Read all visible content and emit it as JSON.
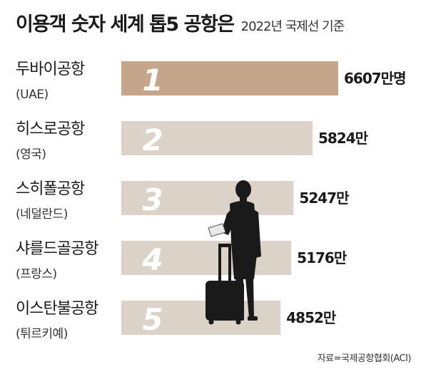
{
  "header": {
    "title": "이용객 숫자 세계 톱5 공항은",
    "subtitle": "2022년 국제선 기준"
  },
  "source": "자료=국제공항협회(ACI)",
  "colors": {
    "highlight_bar": "#c5a68a",
    "bar": "#dcd3c8",
    "rank_number": "#ffffff",
    "text": "#1a1a1a"
  },
  "chart_data": {
    "type": "bar",
    "orientation": "horizontal",
    "title": "이용객 숫자 세계 톱5 공항은",
    "subtitle": "2022년 국제선 기준",
    "unit": "만명",
    "categories": [
      "두바이공항",
      "히스로공항",
      "스히폴공항",
      "샤를드골공항",
      "이스탄불공항"
    ],
    "countries": [
      "(UAE)",
      "(영국)",
      "(네덜란드)",
      "(프랑스)",
      "(튀르키예)"
    ],
    "ranks": [
      "1",
      "2",
      "3",
      "4",
      "5"
    ],
    "values": [
      6607,
      5824,
      5247,
      5176,
      4852
    ],
    "value_labels": [
      "6607만명",
      "5824만",
      "5247만",
      "5176만",
      "4852만"
    ],
    "highlight_index": 0,
    "grid": false,
    "legend": "none"
  }
}
